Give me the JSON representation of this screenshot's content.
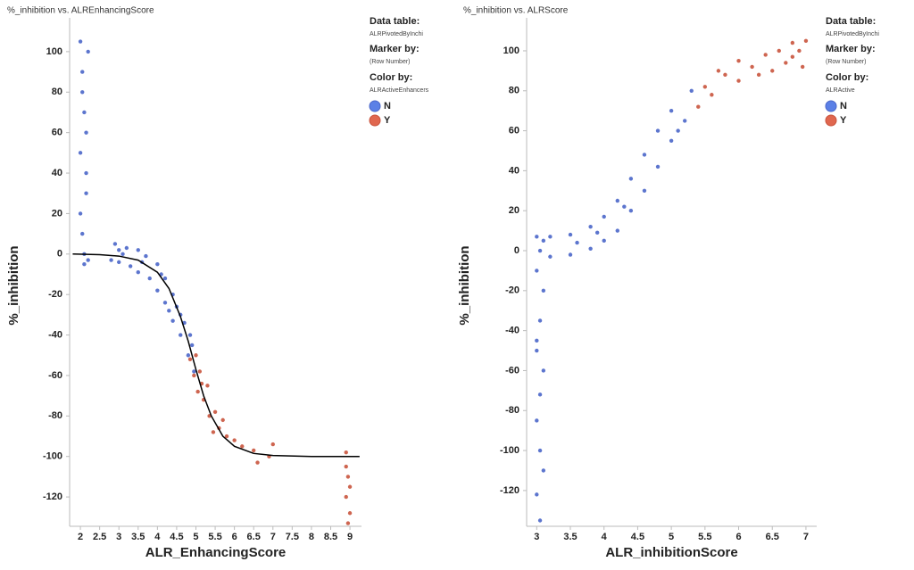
{
  "chart_data": [
    {
      "type": "scatter",
      "title": "%_inhibition vs. ALREnhancingScore",
      "x_label": "ALR_EnhancingScore",
      "y_label": "%_inhibition",
      "xlim": [
        1.72,
        9.3
      ],
      "ylim": [
        -134.5,
        116.7
      ],
      "xticks": [
        2,
        2.5,
        3,
        3.5,
        4,
        4.5,
        5,
        5.5,
        6,
        6.5,
        7,
        7.5,
        8,
        8.5,
        9
      ],
      "yticks": [
        -120,
        -100,
        -80,
        -60,
        -40,
        -20,
        0,
        20,
        40,
        60,
        80,
        100
      ],
      "legend_position": "right",
      "legend": {
        "data_table_label": "Data table:",
        "data_table": "ALRPivotedByInchi",
        "marker_by_label": "Marker by:",
        "marker_by": "(Row Number)",
        "color_by_label": "Color by:",
        "color_by": "ALRActiveEnhancers"
      },
      "series": [
        {
          "name": "N",
          "color": "#4a66c9",
          "legend_color": "#5b80e6",
          "x": [
            2.0,
            2.05,
            2.1,
            2.0,
            2.15,
            2.05,
            2.1,
            2.2,
            2.15,
            2.0,
            2.1,
            2.2,
            2.05,
            2.15,
            2.8,
            2.9,
            3.0,
            3.0,
            3.2,
            3.3,
            3.5,
            3.5,
            3.7,
            3.8,
            4.0,
            4.0,
            4.2,
            4.2,
            4.4,
            4.4,
            4.5,
            4.6,
            4.7,
            4.8,
            4.9,
            4.95,
            3.1,
            3.6,
            4.1,
            4.3,
            4.6,
            4.85
          ],
          "y": [
            105,
            90,
            70,
            50,
            30,
            10,
            -5,
            100,
            60,
            20,
            0,
            -3,
            80,
            40,
            -3,
            5,
            2,
            -4,
            3,
            -6,
            2,
            -9,
            -1,
            -12,
            -5,
            -18,
            -12,
            -24,
            -20,
            -33,
            -26,
            -40,
            -34,
            -50,
            -45,
            -58,
            0,
            -4,
            -10,
            -28,
            -30,
            -40
          ]
        },
        {
          "name": "Y",
          "color": "#c9543d",
          "legend_color": "#e0674f",
          "x": [
            4.85,
            4.95,
            5.0,
            5.05,
            5.1,
            5.2,
            5.3,
            5.35,
            5.5,
            5.6,
            5.7,
            5.8,
            6.0,
            6.2,
            6.5,
            6.6,
            6.9,
            7.0,
            8.9,
            8.95,
            8.9,
            9.0,
            8.95,
            8.9,
            9.0,
            5.15,
            5.45
          ],
          "y": [
            -52,
            -60,
            -50,
            -68,
            -58,
            -72,
            -65,
            -80,
            -78,
            -86,
            -82,
            -90,
            -92,
            -95,
            -97,
            -103,
            -100,
            -94,
            -98,
            -110,
            -120,
            -128,
            -133,
            -105,
            -115,
            -64,
            -88
          ]
        }
      ],
      "fit_line": {
        "color": "#000000",
        "x": [
          1.8,
          2.5,
          3,
          3.5,
          4,
          4.3,
          4.6,
          4.8,
          5,
          5.2,
          5.4,
          5.7,
          6,
          6.5,
          7,
          8,
          9.25
        ],
        "y": [
          0,
          -0.3,
          -1,
          -3,
          -9,
          -17,
          -31,
          -43,
          -57,
          -70,
          -80,
          -90,
          -95,
          -98.5,
          -99.5,
          -100,
          -100
        ]
      }
    },
    {
      "type": "scatter",
      "title": "%_inhibition vs. ALRScore",
      "x_label": "ALR_inhibitionScore",
      "y_label": "%_inhibition",
      "xlim": [
        2.85,
        7.16
      ],
      "ylim": [
        -137.9,
        116.5
      ],
      "xticks": [
        3,
        3.5,
        4,
        4.5,
        5,
        5.5,
        6,
        6.5,
        7
      ],
      "yticks": [
        -120,
        -100,
        -80,
        -60,
        -40,
        -20,
        0,
        20,
        40,
        60,
        80,
        100
      ],
      "legend_position": "right",
      "legend": {
        "data_table_label": "Data table:",
        "data_table": "ALRPivotedByInchi",
        "marker_by_label": "Marker by:",
        "marker_by": "(Row Number)",
        "color_by_label": "Color by:",
        "color_by": "ALRActive"
      },
      "series": [
        {
          "name": "N",
          "color": "#4a66c9",
          "legend_color": "#5b80e6",
          "x": [
            3.0,
            3.05,
            3.0,
            3.1,
            3.05,
            3.0,
            3.1,
            3.05,
            3.0,
            3.05,
            3.1,
            3.0,
            3.05,
            3.1,
            3.0,
            3.2,
            3.2,
            3.5,
            3.5,
            3.8,
            3.8,
            4.0,
            4.0,
            4.2,
            4.2,
            4.4,
            4.4,
            4.6,
            4.6,
            4.8,
            4.8,
            5.0,
            5.0,
            5.2,
            5.3,
            5.1,
            4.3,
            3.6,
            3.9
          ],
          "y": [
            7,
            0,
            -10,
            -20,
            -35,
            -50,
            -60,
            -72,
            -85,
            -100,
            -110,
            -122,
            -135,
            5,
            -45,
            -3,
            7,
            -2,
            8,
            1,
            12,
            5,
            17,
            10,
            25,
            20,
            36,
            30,
            48,
            42,
            60,
            55,
            70,
            65,
            80,
            60,
            22,
            4,
            9
          ]
        },
        {
          "name": "Y",
          "color": "#c9543d",
          "legend_color": "#e0674f",
          "x": [
            5.4,
            5.5,
            5.6,
            5.8,
            6.0,
            6.0,
            6.2,
            6.4,
            6.5,
            6.6,
            6.8,
            6.8,
            6.95,
            7.0,
            6.9,
            5.7,
            6.3,
            6.7
          ],
          "y": [
            72,
            82,
            78,
            88,
            85,
            95,
            92,
            98,
            90,
            100,
            97,
            104,
            92,
            105,
            100,
            90,
            88,
            94
          ]
        }
      ]
    }
  ]
}
